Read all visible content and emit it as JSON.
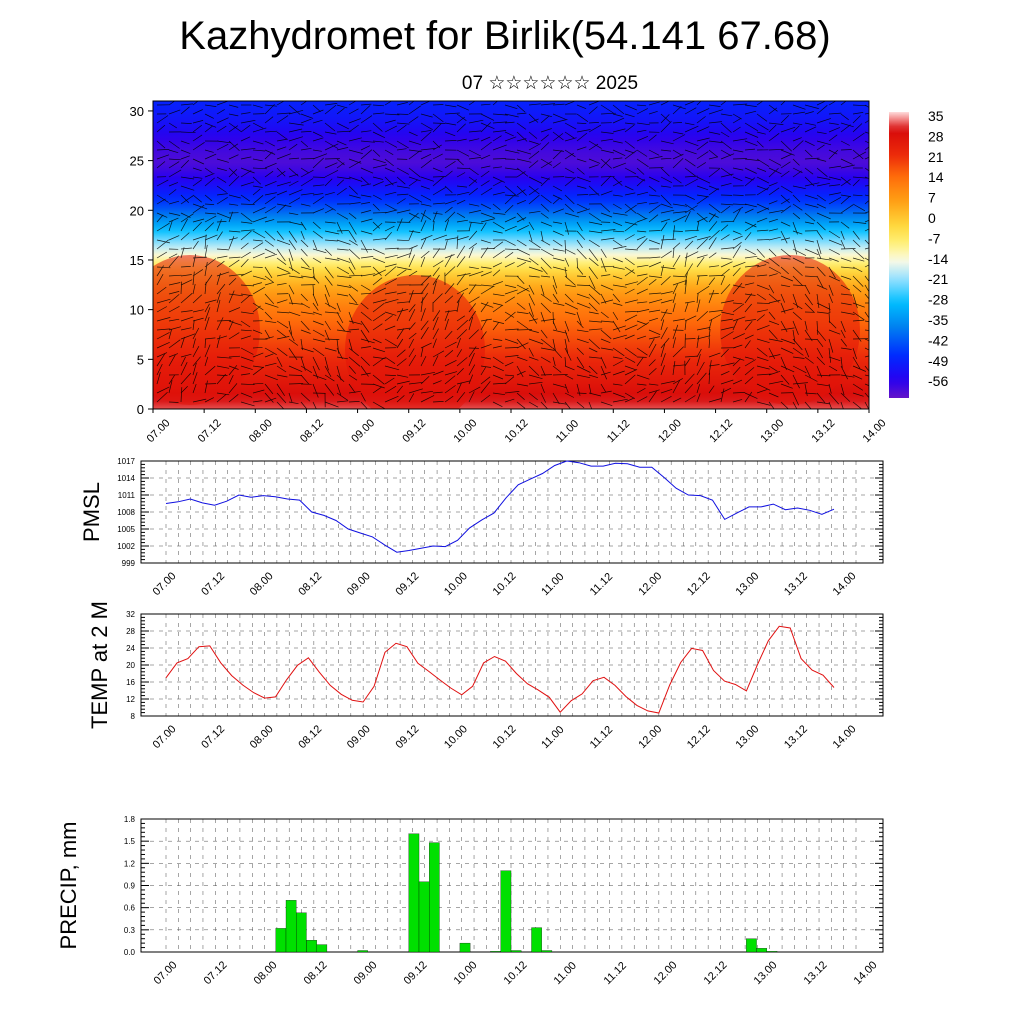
{
  "title": "Kazhydromet for Birlik(54.141 67.68)",
  "subtitle": "07 ☆☆☆☆☆☆ 2025",
  "time_labels": [
    "07.00",
    "07.12",
    "08.00",
    "08.12",
    "09.00",
    "09.12",
    "10.00",
    "10.12",
    "11.00",
    "11.12",
    "12.00",
    "12.12",
    "13.00",
    "13.12",
    "14.00"
  ],
  "colors": {
    "pmsl": "#1010e0",
    "temp": "#e01010",
    "precip": "#00e000"
  },
  "chart_data": [
    {
      "type": "heatmap",
      "title": "",
      "xlabel": "",
      "ylabel": "",
      "ylim": [
        0,
        31
      ],
      "y_ticks": [
        0,
        5,
        10,
        15,
        20,
        25,
        30
      ],
      "colorbar_labels": [
        "35",
        "28",
        "21",
        "14",
        "7",
        "0",
        "-7",
        "-14",
        "-21",
        "-28",
        "-35",
        "-42",
        "-49",
        "-56"
      ],
      "colorbar_range": [
        -60,
        36
      ],
      "profile": {
        "height": [
          0,
          2,
          4,
          6,
          8,
          10,
          12,
          13,
          14,
          15,
          16,
          17,
          18,
          19,
          20,
          21,
          22,
          23,
          24,
          25,
          27,
          29,
          31
        ],
        "value": [
          32,
          28,
          24,
          20,
          16,
          12,
          6,
          2,
          -3,
          -10,
          -16,
          -22,
          -28,
          -34,
          -40,
          -45,
          -49,
          -53,
          -56,
          -58,
          -55,
          -50,
          -47
        ]
      },
      "overlay": "wind barbs"
    },
    {
      "type": "line",
      "title": "",
      "ylabel": "PMSL",
      "y_ticks": [
        999,
        1002,
        1005,
        1008,
        1011,
        1014,
        1017
      ],
      "ylim": [
        999,
        1017
      ],
      "series": [
        {
          "values": [
            1009.5,
            1009.8,
            1010.3,
            1009.6,
            1009.2,
            1009.9,
            1011,
            1010.6,
            1010.9,
            1010.7,
            1010.3,
            1010.1,
            1008,
            1007.4,
            1006.5,
            1005,
            1004.3,
            1003.6,
            1002.2,
            1000.9,
            1001.2,
            1001.6,
            1002,
            1001.9,
            1003,
            1005.2,
            1006.6,
            1007.8,
            1010.5,
            1012.8,
            1013.8,
            1014.8,
            1016.2,
            1017,
            1016.7,
            1016.1,
            1016.1,
            1016.6,
            1016.5,
            1015.9,
            1015.9,
            1014.1,
            1012.2,
            1011,
            1010.9,
            1010.1,
            1006.7,
            1007.8,
            1008.9,
            1008.9,
            1009.4,
            1008.4,
            1008.7,
            1008.3,
            1007.6,
            1008.5
          ]
        }
      ]
    },
    {
      "type": "line",
      "title": "",
      "ylabel": "TEMP at 2 M",
      "y_ticks": [
        8,
        12,
        16,
        20,
        24,
        28,
        32
      ],
      "ylim": [
        8,
        32
      ],
      "series": [
        {
          "values": [
            17,
            20.5,
            21.5,
            24.3,
            24.5,
            20.5,
            17.5,
            15.3,
            13.5,
            12.2,
            12.5,
            16.5,
            19.9,
            21.7,
            18.3,
            15.2,
            13.1,
            11.7,
            11.3,
            15,
            23,
            25.1,
            24.3,
            20.4,
            18.5,
            16.5,
            14.6,
            13,
            15,
            20.5,
            22,
            20.9,
            18,
            15.6,
            14.1,
            12.4,
            8.9,
            11.6,
            13.2,
            16.3,
            17.1,
            15.2,
            12.6,
            10.5,
            9.2,
            8.7,
            15.3,
            20.6,
            23.9,
            23.4,
            18.7,
            16.2,
            15.4,
            13.9,
            20,
            25.7,
            29.1,
            28.7,
            21.5,
            18.8,
            17.6,
            14.7
          ]
        }
      ]
    },
    {
      "type": "bar",
      "title": "",
      "ylabel": "PRECIP, mm",
      "y_ticks": [
        "0.0",
        "0.3",
        "0.6",
        "0.9",
        "1.2",
        "1.5",
        "1.8"
      ],
      "ylim": [
        0,
        1.8
      ],
      "values": [
        0,
        0,
        0,
        0,
        0,
        0,
        0,
        0,
        0,
        0,
        0,
        0,
        0.32,
        0.7,
        0.53,
        0.16,
        0.1,
        0,
        0,
        0,
        0.02,
        0,
        0,
        0,
        0,
        1.6,
        0.95,
        1.48,
        0,
        0,
        0.12,
        0,
        0,
        0.01,
        1.1,
        0.02,
        0,
        0.33,
        0.02,
        0,
        0,
        0,
        0,
        0,
        0,
        0,
        0,
        0,
        0,
        0,
        0,
        0,
        0,
        0,
        0,
        0,
        0,
        0,
        0.18,
        0.05,
        0.01,
        0,
        0,
        0,
        0,
        0,
        0,
        0,
        0,
        0,
        0,
        0
      ]
    }
  ]
}
